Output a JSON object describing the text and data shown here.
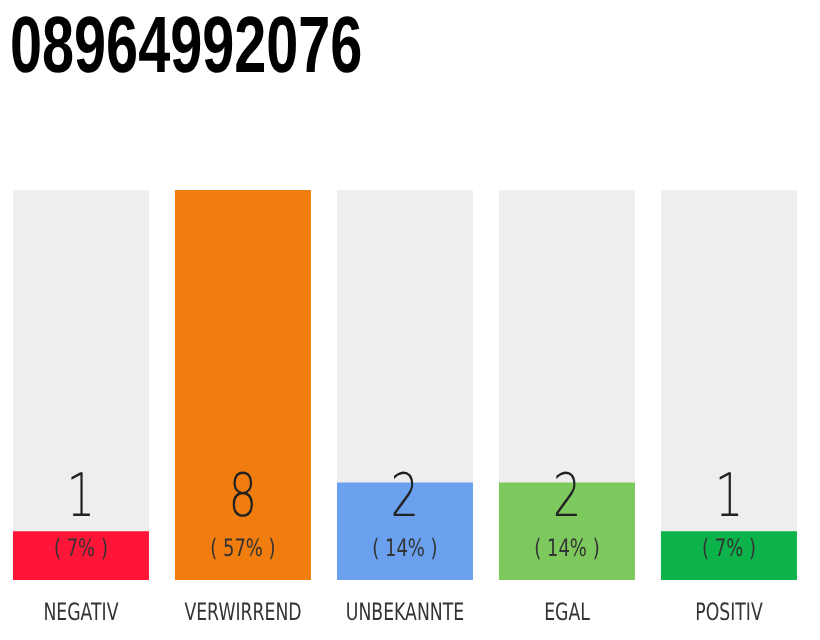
{
  "chart_data": {
    "type": "bar",
    "title": "08964992076",
    "categories": [
      "NEGATIV",
      "VERWIRREND",
      "UNBEKANNTE",
      "EGAL",
      "POSITIV"
    ],
    "values": [
      1,
      8,
      2,
      2,
      1
    ],
    "colors": [
      "#ff1538",
      "#f07d0d",
      "#6aa0ee",
      "#7dc95e",
      "#0cb34a"
    ],
    "data_labels": true,
    "annotations": [
      "( 7% )",
      "( 57% )",
      "( 14% )",
      "( 14% )",
      "( 7% )"
    ],
    "grid": false,
    "legend": false
  }
}
